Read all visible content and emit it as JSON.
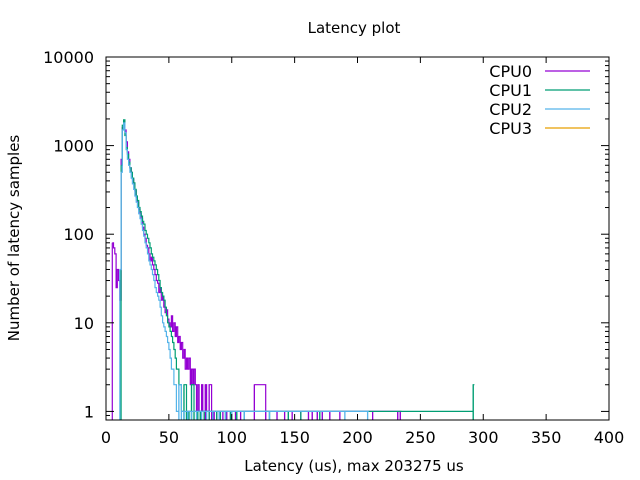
{
  "chart_data": {
    "type": "line",
    "title": "Latency plot",
    "xlabel": "Latency (us), max 203275 us",
    "ylabel": "Number of latency samples",
    "xlim": [
      0,
      400
    ],
    "ylim": [
      0.8,
      10000
    ],
    "y_scale": "log",
    "x_ticks": [
      0,
      50,
      100,
      150,
      200,
      250,
      300,
      350,
      400
    ],
    "y_ticks": [
      1,
      10,
      100,
      1000,
      10000
    ],
    "y_tick_labels": [
      "1",
      "10",
      "100",
      "1000",
      "10000"
    ],
    "grid": false,
    "legend_position": "top-right",
    "series": [
      {
        "name": "CPU0",
        "color": "#9400d3",
        "step": true,
        "points": [
          [
            5,
            80
          ],
          [
            6,
            70
          ],
          [
            7,
            60
          ],
          [
            8,
            25
          ],
          [
            9,
            40
          ],
          [
            10,
            30
          ],
          [
            11,
            18
          ],
          [
            12,
            700
          ],
          [
            13,
            1600
          ],
          [
            14,
            1900
          ],
          [
            15,
            1500
          ],
          [
            16,
            1100
          ],
          [
            17,
            850
          ],
          [
            18,
            700
          ],
          [
            19,
            560
          ],
          [
            20,
            500
          ],
          [
            21,
            420
          ],
          [
            22,
            370
          ],
          [
            23,
            310
          ],
          [
            24,
            260
          ],
          [
            25,
            230
          ],
          [
            26,
            190
          ],
          [
            27,
            170
          ],
          [
            28,
            150
          ],
          [
            29,
            120
          ],
          [
            30,
            100
          ],
          [
            31,
            90
          ],
          [
            32,
            75
          ],
          [
            33,
            70
          ],
          [
            34,
            60
          ],
          [
            35,
            50
          ],
          [
            36,
            55
          ],
          [
            37,
            45
          ],
          [
            38,
            40
          ],
          [
            39,
            35
          ],
          [
            40,
            30
          ],
          [
            41,
            28
          ],
          [
            42,
            22
          ],
          [
            43,
            25
          ],
          [
            44,
            18
          ],
          [
            45,
            20
          ],
          [
            46,
            15
          ],
          [
            47,
            13
          ],
          [
            48,
            14
          ],
          [
            49,
            11
          ],
          [
            50,
            10
          ],
          [
            51,
            9
          ],
          [
            52,
            12
          ],
          [
            53,
            8
          ],
          [
            54,
            10
          ],
          [
            55,
            7
          ],
          [
            56,
            9
          ],
          [
            57,
            6
          ],
          [
            58,
            7
          ],
          [
            59,
            5
          ],
          [
            60,
            6
          ],
          [
            61,
            4
          ],
          [
            62,
            5
          ],
          [
            63,
            3
          ],
          [
            64,
            4
          ],
          [
            65,
            3
          ],
          [
            66,
            4
          ],
          [
            67,
            2
          ],
          [
            68,
            3
          ],
          [
            69,
            2
          ],
          [
            70,
            3
          ],
          [
            71,
            2
          ],
          [
            72,
            1
          ],
          [
            73,
            2
          ],
          [
            74,
            1
          ],
          [
            75,
            1
          ],
          [
            76,
            2
          ],
          [
            77,
            1
          ],
          [
            79,
            2
          ],
          [
            80,
            1
          ],
          [
            82,
            2
          ],
          [
            84,
            1
          ],
          [
            86,
            1
          ],
          [
            88,
            1
          ],
          [
            90,
            1
          ],
          [
            93,
            1
          ],
          [
            96,
            1
          ],
          [
            99,
            1
          ],
          [
            103,
            1
          ],
          [
            107,
            1
          ],
          [
            118,
            2
          ],
          [
            127,
            1
          ],
          [
            136,
            1
          ],
          [
            142,
            1
          ],
          [
            148,
            1
          ],
          [
            155,
            1
          ],
          [
            161,
            1
          ],
          [
            164,
            1
          ],
          [
            168,
            1
          ],
          [
            172,
            1
          ],
          [
            178,
            1
          ],
          [
            186,
            1
          ],
          [
            212,
            1
          ],
          [
            232,
            1
          ],
          [
            234,
            1
          ]
        ]
      },
      {
        "name": "CPU1",
        "color": "#009e73",
        "step": true,
        "points": [
          [
            12,
            600
          ],
          [
            13,
            1700
          ],
          [
            14,
            1950
          ],
          [
            15,
            1300
          ],
          [
            16,
            950
          ],
          [
            17,
            800
          ],
          [
            18,
            650
          ],
          [
            19,
            560
          ],
          [
            20,
            500
          ],
          [
            21,
            430
          ],
          [
            22,
            380
          ],
          [
            23,
            320
          ],
          [
            24,
            270
          ],
          [
            25,
            240
          ],
          [
            26,
            200
          ],
          [
            27,
            180
          ],
          [
            28,
            160
          ],
          [
            29,
            140
          ],
          [
            30,
            130
          ],
          [
            31,
            110
          ],
          [
            32,
            100
          ],
          [
            33,
            90
          ],
          [
            34,
            80
          ],
          [
            35,
            70
          ],
          [
            36,
            60
          ],
          [
            37,
            55
          ],
          [
            38,
            50
          ],
          [
            39,
            45
          ],
          [
            40,
            40
          ],
          [
            41,
            35
          ],
          [
            42,
            30
          ],
          [
            43,
            25
          ],
          [
            44,
            22
          ],
          [
            45,
            20
          ],
          [
            46,
            18
          ],
          [
            47,
            15
          ],
          [
            48,
            12
          ],
          [
            49,
            10
          ],
          [
            50,
            9
          ],
          [
            51,
            8
          ],
          [
            52,
            7
          ],
          [
            53,
            6
          ],
          [
            54,
            5
          ],
          [
            55,
            4
          ],
          [
            56,
            3
          ],
          [
            57,
            3
          ],
          [
            58,
            2
          ],
          [
            59,
            2
          ],
          [
            60,
            1
          ],
          [
            62,
            2
          ],
          [
            64,
            1
          ],
          [
            66,
            1
          ],
          [
            68,
            2
          ],
          [
            70,
            1
          ],
          [
            73,
            1
          ],
          [
            75,
            1
          ],
          [
            78,
            1
          ],
          [
            82,
            1
          ],
          [
            85,
            1
          ],
          [
            88,
            1
          ],
          [
            91,
            1
          ],
          [
            95,
            1
          ],
          [
            99,
            1
          ],
          [
            104,
            1
          ],
          [
            110,
            1
          ],
          [
            130,
            1
          ],
          [
            145,
            1
          ],
          [
            155,
            1
          ],
          [
            170,
            1
          ],
          [
            292,
            2
          ]
        ]
      },
      {
        "name": "CPU2",
        "color": "#56b4e9",
        "step": true,
        "points": [
          [
            11,
            40
          ],
          [
            12,
            500
          ],
          [
            13,
            1500
          ],
          [
            14,
            1800
          ],
          [
            15,
            1400
          ],
          [
            16,
            900
          ],
          [
            17,
            700
          ],
          [
            18,
            600
          ],
          [
            19,
            500
          ],
          [
            20,
            430
          ],
          [
            21,
            370
          ],
          [
            22,
            320
          ],
          [
            23,
            270
          ],
          [
            24,
            230
          ],
          [
            25,
            200
          ],
          [
            26,
            170
          ],
          [
            27,
            150
          ],
          [
            28,
            130
          ],
          [
            29,
            110
          ],
          [
            30,
            95
          ],
          [
            31,
            80
          ],
          [
            32,
            70
          ],
          [
            33,
            60
          ],
          [
            34,
            50
          ],
          [
            35,
            45
          ],
          [
            36,
            40
          ],
          [
            37,
            35
          ],
          [
            38,
            30
          ],
          [
            39,
            25
          ],
          [
            40,
            22
          ],
          [
            41,
            20
          ],
          [
            42,
            18
          ],
          [
            43,
            15
          ],
          [
            44,
            12
          ],
          [
            45,
            10
          ],
          [
            46,
            9
          ],
          [
            47,
            8
          ],
          [
            48,
            7
          ],
          [
            49,
            6
          ],
          [
            50,
            5
          ],
          [
            51,
            4
          ],
          [
            52,
            3
          ],
          [
            53,
            3
          ],
          [
            54,
            2
          ],
          [
            55,
            2
          ],
          [
            56,
            1
          ],
          [
            58,
            2
          ],
          [
            60,
            1
          ],
          [
            62,
            1
          ],
          [
            65,
            1
          ],
          [
            68,
            1
          ],
          [
            72,
            1
          ],
          [
            76,
            1
          ],
          [
            80,
            1
          ],
          [
            85,
            1
          ],
          [
            90,
            1
          ],
          [
            95,
            1
          ],
          [
            100,
            1
          ],
          [
            110,
            1
          ],
          [
            130,
            1
          ],
          [
            190,
            1
          ],
          [
            208,
            1
          ]
        ]
      },
      {
        "name": "CPU3",
        "color": "#e69f00",
        "step": true,
        "points": []
      }
    ]
  }
}
